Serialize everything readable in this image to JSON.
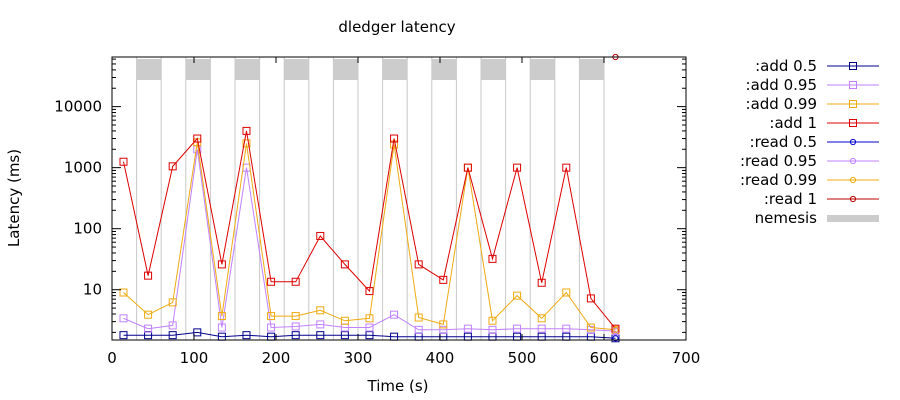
{
  "chart_data": {
    "type": "line",
    "title": "dledger latency",
    "xlabel": "Time (s)",
    "ylabel": "Latency (ms)",
    "x_scale": "linear",
    "y_scale": "log",
    "xlim": [
      0,
      700
    ],
    "ylim": [
      1.5,
      65000
    ],
    "x_ticks": [
      0,
      100,
      200,
      300,
      400,
      500,
      600,
      700
    ],
    "x_tick_labels": [
      "0",
      "100",
      "200",
      "300",
      "400",
      "500",
      "600",
      "700"
    ],
    "y_ticks": [
      10,
      100,
      1000,
      10000
    ],
    "y_tick_labels": [
      "10",
      "100",
      "1000",
      "10000"
    ],
    "legend_position": "right",
    "nemesis": {
      "name": "nemesis",
      "color": "#cccccc",
      "intervals": [
        [
          30,
          60
        ],
        [
          90,
          120
        ],
        [
          150,
          180
        ],
        [
          210,
          240
        ],
        [
          270,
          300
        ],
        [
          330,
          360
        ],
        [
          390,
          420
        ],
        [
          450,
          480
        ],
        [
          510,
          540
        ],
        [
          570,
          600
        ]
      ]
    },
    "series": [
      {
        "name": ":add 0.5",
        "color": "#00008b",
        "marker": "square",
        "points": [
          [
            14,
            1.8
          ],
          [
            44,
            1.8
          ],
          [
            74,
            1.8
          ],
          [
            104,
            2.0
          ],
          [
            134,
            1.7
          ],
          [
            164,
            1.8
          ],
          [
            194,
            1.7
          ],
          [
            224,
            1.8
          ],
          [
            254,
            1.8
          ],
          [
            284,
            1.8
          ],
          [
            314,
            1.8
          ],
          [
            344,
            1.7
          ],
          [
            374,
            1.7
          ],
          [
            404,
            1.7
          ],
          [
            434,
            1.7
          ],
          [
            464,
            1.7
          ],
          [
            494,
            1.7
          ],
          [
            524,
            1.7
          ],
          [
            554,
            1.7
          ],
          [
            584,
            1.7
          ],
          [
            614,
            1.6
          ]
        ]
      },
      {
        "name": ":add 0.95",
        "color": "#c080ff",
        "marker": "square",
        "points": [
          [
            14,
            3.4
          ],
          [
            44,
            2.3
          ],
          [
            74,
            2.6
          ],
          [
            104,
            2000
          ],
          [
            134,
            2.4
          ],
          [
            164,
            1000
          ],
          [
            194,
            2.4
          ],
          [
            224,
            2.5
          ],
          [
            254,
            2.7
          ],
          [
            284,
            2.4
          ],
          [
            314,
            2.4
          ],
          [
            344,
            3.9
          ],
          [
            374,
            2.2
          ],
          [
            404,
            2.2
          ],
          [
            434,
            2.3
          ],
          [
            464,
            2.2
          ],
          [
            494,
            2.3
          ],
          [
            524,
            2.3
          ],
          [
            554,
            2.3
          ],
          [
            584,
            2.2
          ],
          [
            614,
            2.1
          ]
        ]
      },
      {
        "name": ":add 0.99",
        "color": "#eeaa11",
        "marker": "square",
        "points": [
          [
            14,
            9
          ],
          [
            44,
            3.9
          ],
          [
            74,
            6.2
          ],
          [
            104,
            2600
          ],
          [
            134,
            3.7
          ],
          [
            164,
            2500
          ],
          [
            194,
            3.7
          ],
          [
            224,
            3.7
          ],
          [
            254,
            4.6
          ],
          [
            284,
            3.1
          ],
          [
            314,
            3.4
          ],
          [
            344,
            2400
          ],
          [
            374,
            3.5
          ],
          [
            404,
            2.7
          ],
          [
            434,
            1000
          ],
          [
            464,
            3.1
          ],
          [
            494,
            8
          ],
          [
            524,
            3.4
          ],
          [
            554,
            9
          ],
          [
            584,
            2.4
          ],
          [
            614,
            2.2
          ]
        ]
      },
      {
        "name": ":add 1",
        "color": "#dd0000",
        "marker": "square",
        "points": [
          [
            14,
            1250
          ],
          [
            44,
            17
          ],
          [
            74,
            1050
          ],
          [
            104,
            3000
          ],
          [
            134,
            26
          ],
          [
            164,
            4000
          ],
          [
            194,
            13.5
          ],
          [
            224,
            13.5
          ],
          [
            254,
            76
          ],
          [
            284,
            26
          ],
          [
            314,
            9.5
          ],
          [
            344,
            3000
          ],
          [
            374,
            26
          ],
          [
            404,
            14.5
          ],
          [
            434,
            1000
          ],
          [
            464,
            32
          ],
          [
            494,
            1000
          ],
          [
            524,
            13
          ],
          [
            554,
            1000
          ],
          [
            584,
            7.2
          ],
          [
            614,
            2.3
          ]
        ]
      },
      {
        "name": ":read 0.5",
        "color": "#0000cc",
        "marker": "circle",
        "points": [
          [
            614,
            1.6
          ]
        ]
      },
      {
        "name": ":read 0.95",
        "color": "#c080ff",
        "marker": "circle",
        "points": [
          [
            614,
            2.1
          ]
        ]
      },
      {
        "name": ":read 0.99",
        "color": "#eeaa11",
        "marker": "circle",
        "points": [
          [
            614,
            2.2
          ]
        ]
      },
      {
        "name": ":read 1",
        "color": "#bb0000",
        "marker": "circle",
        "points": [
          [
            614,
            65000
          ]
        ]
      }
    ]
  }
}
